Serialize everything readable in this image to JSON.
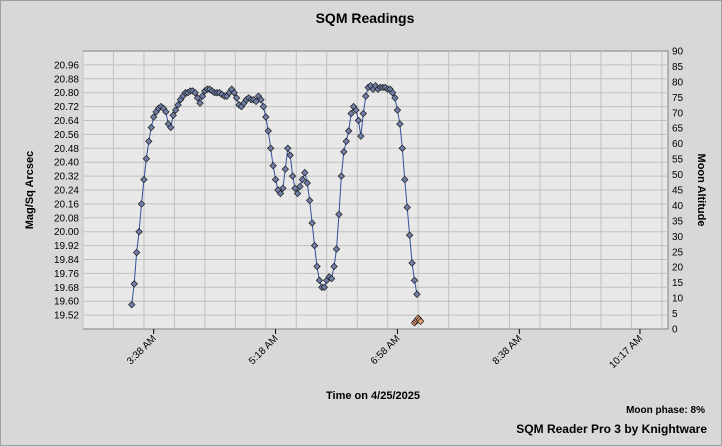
{
  "chart_data": {
    "type": "scatter",
    "title": "SQM Readings",
    "xlabel": "Time on 4/25/2025",
    "ylabel": "Mag/Sq Arcsec",
    "y2label": "Moon Altitude",
    "x_range_minutes": [
      160,
      640
    ],
    "x_ticks": [
      {
        "label": "3:38 AM",
        "minutes": 218
      },
      {
        "label": "5:18 AM",
        "minutes": 318
      },
      {
        "label": "6:58 AM",
        "minutes": 418
      },
      {
        "label": "8:38 AM",
        "minutes": 518
      },
      {
        "label": "10:17 AM",
        "minutes": 617
      }
    ],
    "ylim": [
      19.44,
      21.04
    ],
    "y_ticks": [
      "20.96",
      "20.88",
      "20.80",
      "20.72",
      "20.64",
      "20.56",
      "20.48",
      "20.40",
      "20.32",
      "20.24",
      "20.16",
      "20.08",
      "20.00",
      "19.92",
      "19.84",
      "19.76",
      "19.68",
      "19.60",
      "19.52"
    ],
    "y2lim": [
      0,
      90
    ],
    "y2_ticks": [
      "90",
      "85",
      "80",
      "75",
      "70",
      "65",
      "60",
      "55",
      "50",
      "45",
      "40",
      "35",
      "30",
      "25",
      "20",
      "15",
      "10",
      "5",
      "0"
    ],
    "grid": true,
    "series": [
      {
        "color": "#6f7fa8",
        "points": [
          [
            200,
            19.58
          ],
          [
            202,
            19.7
          ],
          [
            204,
            19.88
          ],
          [
            206,
            20.0
          ],
          [
            208,
            20.16
          ],
          [
            210,
            20.3
          ],
          [
            212,
            20.42
          ],
          [
            214,
            20.52
          ],
          [
            216,
            20.6
          ],
          [
            218,
            20.66
          ],
          [
            220,
            20.69
          ],
          [
            222,
            20.71
          ],
          [
            224,
            20.72
          ],
          [
            226,
            20.71
          ],
          [
            228,
            20.69
          ],
          [
            230,
            20.62
          ],
          [
            232,
            20.6
          ],
          [
            234,
            20.67
          ],
          [
            236,
            20.7
          ],
          [
            238,
            20.73
          ],
          [
            240,
            20.76
          ],
          [
            242,
            20.78
          ],
          [
            244,
            20.8
          ],
          [
            246,
            20.8
          ],
          [
            248,
            20.81
          ],
          [
            250,
            20.81
          ],
          [
            252,
            20.8
          ],
          [
            254,
            20.77
          ],
          [
            256,
            20.74
          ],
          [
            258,
            20.78
          ],
          [
            260,
            20.81
          ],
          [
            262,
            20.82
          ],
          [
            264,
            20.82
          ],
          [
            266,
            20.81
          ],
          [
            268,
            20.8
          ],
          [
            270,
            20.8
          ],
          [
            272,
            20.8
          ],
          [
            274,
            20.79
          ],
          [
            276,
            20.78
          ],
          [
            278,
            20.78
          ],
          [
            280,
            20.8
          ],
          [
            282,
            20.82
          ],
          [
            284,
            20.8
          ],
          [
            286,
            20.77
          ],
          [
            288,
            20.73
          ],
          [
            290,
            20.72
          ],
          [
            292,
            20.74
          ],
          [
            294,
            20.76
          ],
          [
            296,
            20.77
          ],
          [
            298,
            20.76
          ],
          [
            300,
            20.76
          ],
          [
            302,
            20.75
          ],
          [
            304,
            20.78
          ],
          [
            306,
            20.76
          ],
          [
            308,
            20.72
          ],
          [
            310,
            20.66
          ],
          [
            312,
            20.58
          ],
          [
            314,
            20.48
          ],
          [
            316,
            20.38
          ],
          [
            318,
            20.3
          ],
          [
            320,
            20.24
          ],
          [
            322,
            20.22
          ],
          [
            324,
            20.25
          ],
          [
            326,
            20.36
          ],
          [
            328,
            20.48
          ],
          [
            330,
            20.44
          ],
          [
            332,
            20.32
          ],
          [
            334,
            20.25
          ],
          [
            336,
            20.22
          ],
          [
            338,
            20.26
          ],
          [
            340,
            20.3
          ],
          [
            342,
            20.34
          ],
          [
            344,
            20.28
          ],
          [
            346,
            20.18
          ],
          [
            348,
            20.05
          ],
          [
            350,
            19.92
          ],
          [
            352,
            19.8
          ],
          [
            354,
            19.72
          ],
          [
            356,
            19.68
          ],
          [
            358,
            19.68
          ],
          [
            360,
            19.72
          ],
          [
            362,
            19.74
          ],
          [
            364,
            19.73
          ],
          [
            366,
            19.8
          ],
          [
            368,
            19.9
          ],
          [
            370,
            20.1
          ],
          [
            372,
            20.32
          ],
          [
            374,
            20.46
          ],
          [
            376,
            20.52
          ],
          [
            378,
            20.58
          ],
          [
            380,
            20.68
          ],
          [
            382,
            20.72
          ],
          [
            384,
            20.7
          ],
          [
            386,
            20.64
          ],
          [
            388,
            20.55
          ],
          [
            390,
            20.68
          ],
          [
            392,
            20.78
          ],
          [
            394,
            20.83
          ],
          [
            396,
            20.84
          ],
          [
            398,
            20.82
          ],
          [
            400,
            20.84
          ],
          [
            402,
            20.82
          ],
          [
            404,
            20.83
          ],
          [
            406,
            20.83
          ],
          [
            408,
            20.83
          ],
          [
            410,
            20.82
          ],
          [
            412,
            20.82
          ],
          [
            414,
            20.8
          ],
          [
            416,
            20.77
          ],
          [
            418,
            20.7
          ],
          [
            420,
            20.62
          ],
          [
            422,
            20.48
          ],
          [
            424,
            20.3
          ],
          [
            426,
            20.14
          ],
          [
            428,
            19.98
          ],
          [
            430,
            19.82
          ],
          [
            432,
            19.72
          ],
          [
            434,
            19.64
          ]
        ]
      },
      {
        "color": "#e8a070",
        "axis": "right",
        "points": [
          [
            432,
            2
          ],
          [
            433,
            2.5
          ],
          [
            434,
            3
          ],
          [
            435,
            3.5
          ],
          [
            436,
            3
          ],
          [
            437,
            2.5
          ]
        ]
      }
    ]
  },
  "footer": {
    "moon_phase": "Moon phase: 8%",
    "brand": "SQM Reader Pro 3 by Knightware"
  }
}
